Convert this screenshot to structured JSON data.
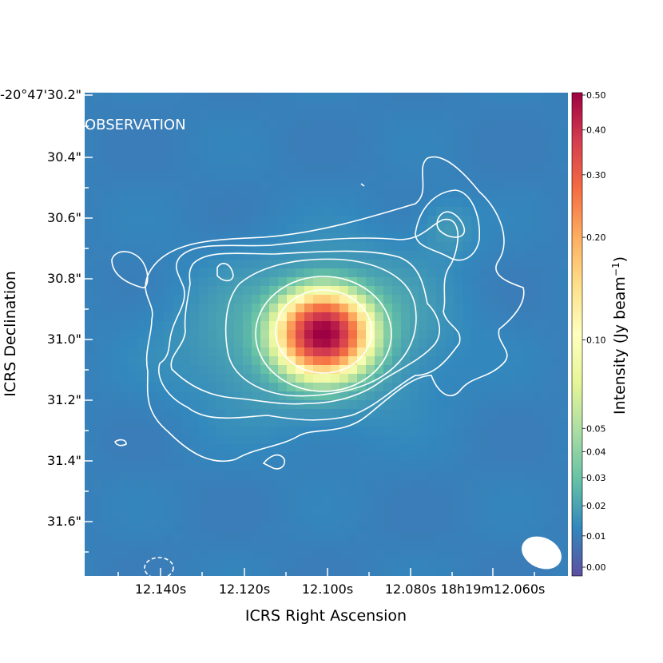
{
  "chart_data": {
    "type": "heatmap",
    "panel_label": "OBSERVATION",
    "xlabel": "ICRS Right Ascension",
    "ylabel": "ICRS Declination",
    "x_ticks": [
      "12.140s",
      "12.120s",
      "12.100s",
      "12.080s",
      "18h19m12.060s"
    ],
    "y_ticks": [
      "-20°47'30.2\"",
      "30.4\"",
      "30.6\"",
      "30.8\"",
      "31.0\"",
      "31.2\"",
      "31.4\"",
      "31.6\""
    ],
    "colorbar": {
      "label": "Intensity (Jy beam",
      "label_superscript": "−1",
      "label_close": ")",
      "scale": "asinh",
      "ticks": [
        0.5,
        0.4,
        0.3,
        0.2,
        0.1,
        0.05,
        0.04,
        0.03,
        0.02,
        0.01,
        0.0
      ],
      "tick_labels": [
        "0.50",
        "0.40",
        "0.30",
        "0.20",
        "0.10",
        "0.05",
        "0.04",
        "0.03",
        "0.02",
        "0.01",
        "0.00"
      ],
      "range": [
        0.0,
        0.5
      ],
      "colormap": "Spectral_r"
    },
    "source": {
      "ra": "18h19m12.101s",
      "dec": "-20°47'31.0\"",
      "peak_intensity": 0.5
    },
    "contours": {
      "color": "#ffffff",
      "levels_shown": 6,
      "negative_style": "dashed"
    },
    "beam": {
      "shape": "ellipse",
      "color": "#ffffff"
    }
  }
}
